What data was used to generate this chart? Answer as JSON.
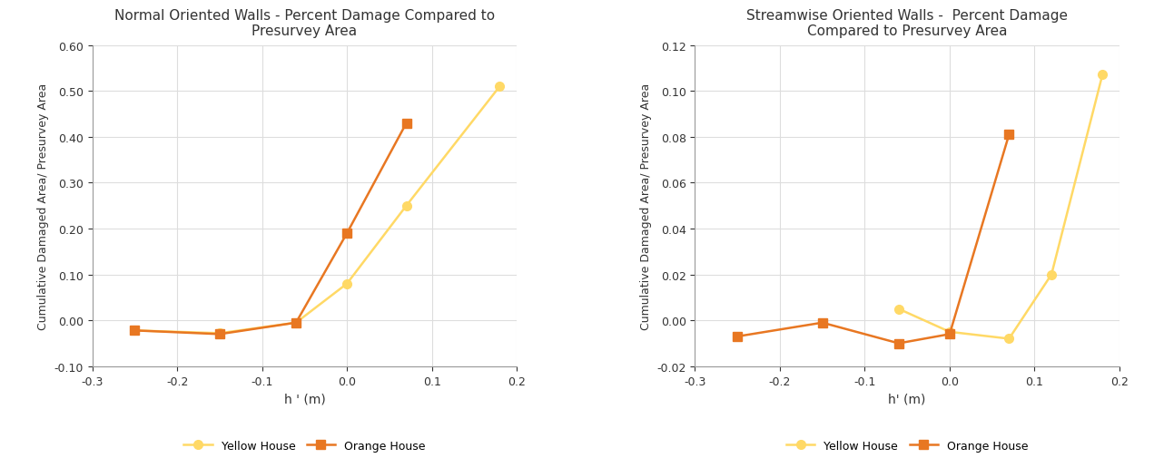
{
  "left": {
    "title": "Normal Oriented Walls - Percent Damage Compared to\nPresurvey Area",
    "xlabel": "h ' (m)",
    "ylabel": "Cumulative Damaged Area/ Presurvey Area",
    "xlim": [
      -0.3,
      0.2
    ],
    "ylim": [
      -0.1,
      0.6
    ],
    "yticks": [
      -0.1,
      0.0,
      0.1,
      0.2,
      0.3,
      0.4,
      0.5,
      0.6
    ],
    "xticks": [
      -0.3,
      -0.2,
      -0.1,
      0.0,
      0.1,
      0.2
    ],
    "yellow_x": [
      -0.25,
      -0.15,
      -0.06,
      0.0,
      0.07,
      0.18
    ],
    "yellow_y": [
      -0.022,
      -0.028,
      -0.005,
      0.08,
      0.25,
      0.51
    ],
    "orange_x": [
      -0.25,
      -0.15,
      -0.06,
      0.0,
      0.07
    ],
    "orange_y": [
      -0.022,
      -0.03,
      -0.005,
      0.19,
      0.43
    ],
    "yellow_color": "#FFD966",
    "orange_color": "#E87722",
    "yellow_label": "Yellow House",
    "orange_label": "Orange House"
  },
  "right": {
    "title": "Streamwise Oriented Walls -  Percent Damage\nCompared to Presurvey Area",
    "xlabel": "h' (m)",
    "ylabel": "Cumulative Damaged Area/ Presurvey Area",
    "xlim": [
      -0.3,
      0.2
    ],
    "ylim": [
      -0.02,
      0.12
    ],
    "yticks": [
      -0.02,
      0.0,
      0.02,
      0.04,
      0.06,
      0.08,
      0.1,
      0.12
    ],
    "xticks": [
      -0.3,
      -0.2,
      -0.1,
      0.0,
      0.1,
      0.2
    ],
    "yellow_x": [
      -0.06,
      0.0,
      0.07,
      0.12,
      0.18
    ],
    "yellow_y": [
      0.005,
      -0.005,
      -0.008,
      0.02,
      0.107
    ],
    "orange_x": [
      -0.25,
      -0.15,
      -0.06,
      0.0,
      0.07
    ],
    "orange_y": [
      -0.007,
      -0.001,
      -0.01,
      -0.006,
      0.081
    ],
    "yellow_color": "#FFD966",
    "orange_color": "#E87722",
    "yellow_label": "Yellow House",
    "orange_label": "Orange House"
  },
  "background_color": "#ffffff",
  "plot_bg_color": "#ffffff",
  "grid_color": "#dddddd",
  "title_fontsize": 11,
  "label_fontsize": 10,
  "ylabel_fontsize": 9,
  "tick_fontsize": 9,
  "tick_color": "#333333",
  "spine_color": "#999999",
  "line_width": 1.8,
  "marker_size": 7
}
